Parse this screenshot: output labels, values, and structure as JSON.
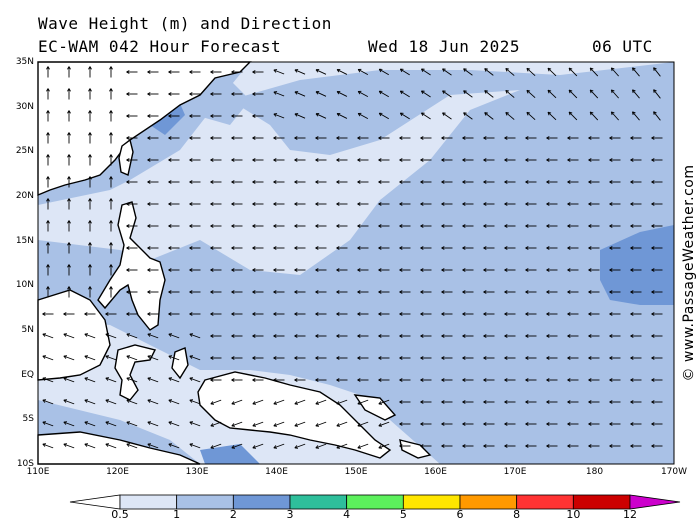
{
  "header": {
    "title_line1": "Wave Height (m) and Direction",
    "title_line2": "EC-WAM 042 Hour Forecast",
    "date": "Wed 18 Jun 2025",
    "time": "06 UTC"
  },
  "watermark": "© www.PassageWeather.com",
  "map": {
    "lat_labels": [
      "35N",
      "30N",
      "25N",
      "20N",
      "15N",
      "10N",
      "5N",
      "EQ",
      "5S",
      "10S"
    ],
    "lon_labels": [
      "110E",
      "120E",
      "130E",
      "140E",
      "150E",
      "160E",
      "170E",
      "180",
      "170W"
    ],
    "colors": {
      "sea_light": "#dde6f6",
      "sea_mid": "#a9c1e6",
      "sea_dark": "#6f97d6",
      "land": "#ffffff"
    }
  },
  "colorbar": {
    "labels": [
      "0.5",
      "1",
      "2",
      "3",
      "4",
      "5",
      "6",
      "8",
      "10",
      "12"
    ],
    "colors": [
      "#ffffff",
      "#dde6f6",
      "#a9c1e6",
      "#6f97d6",
      "#2ebf9b",
      "#5cf05c",
      "#ffe600",
      "#ff9900",
      "#ff3333",
      "#cc0000",
      "#cc00cc"
    ]
  }
}
